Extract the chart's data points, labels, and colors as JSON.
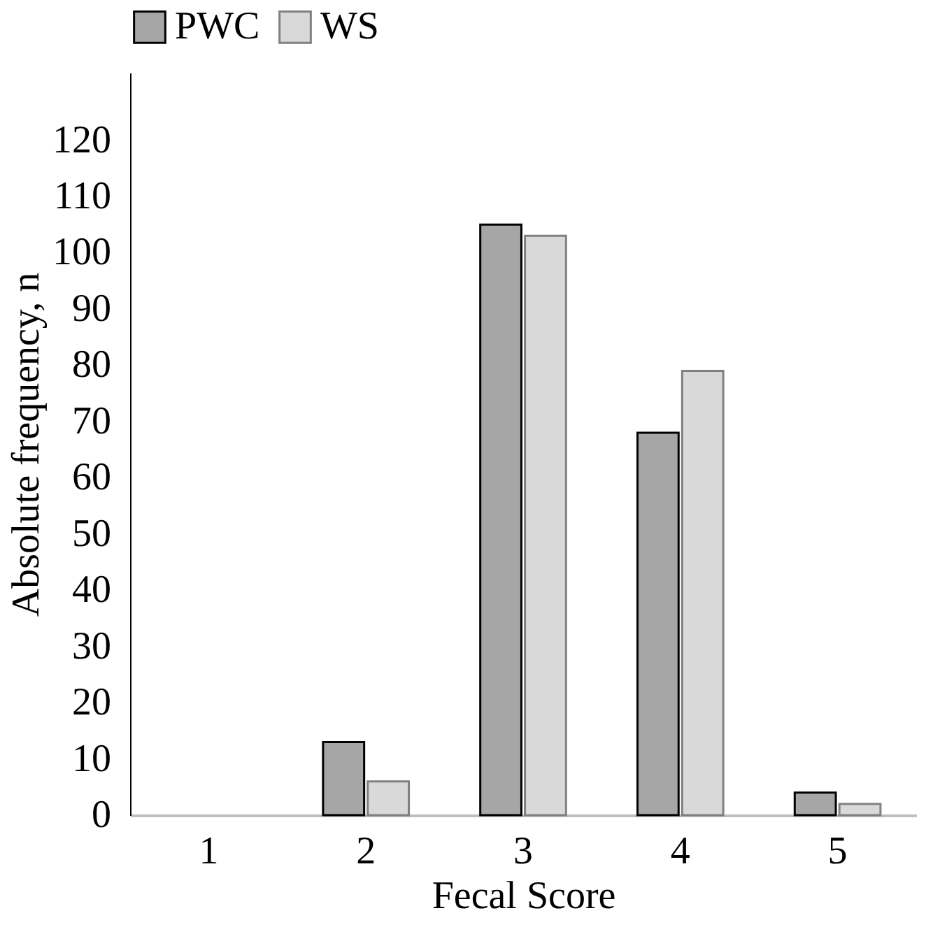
{
  "chart_data": {
    "type": "bar",
    "xlabel": "Fecal Score",
    "ylabel": "Absolute frequency, n",
    "categories": [
      "1",
      "2",
      "3",
      "4",
      "5"
    ],
    "series": [
      {
        "name": "PWC",
        "color": "#a6a6a6",
        "values": [
          0,
          13,
          105,
          68,
          4
        ]
      },
      {
        "name": "WS",
        "color": "#d9d9d9",
        "values": [
          0,
          6,
          103,
          79,
          2
        ]
      }
    ],
    "ylim": [
      0,
      132
    ],
    "yticks": [
      0,
      10,
      20,
      30,
      40,
      50,
      60,
      70,
      80,
      90,
      100,
      110,
      120
    ],
    "grid": false,
    "legend": "top"
  }
}
